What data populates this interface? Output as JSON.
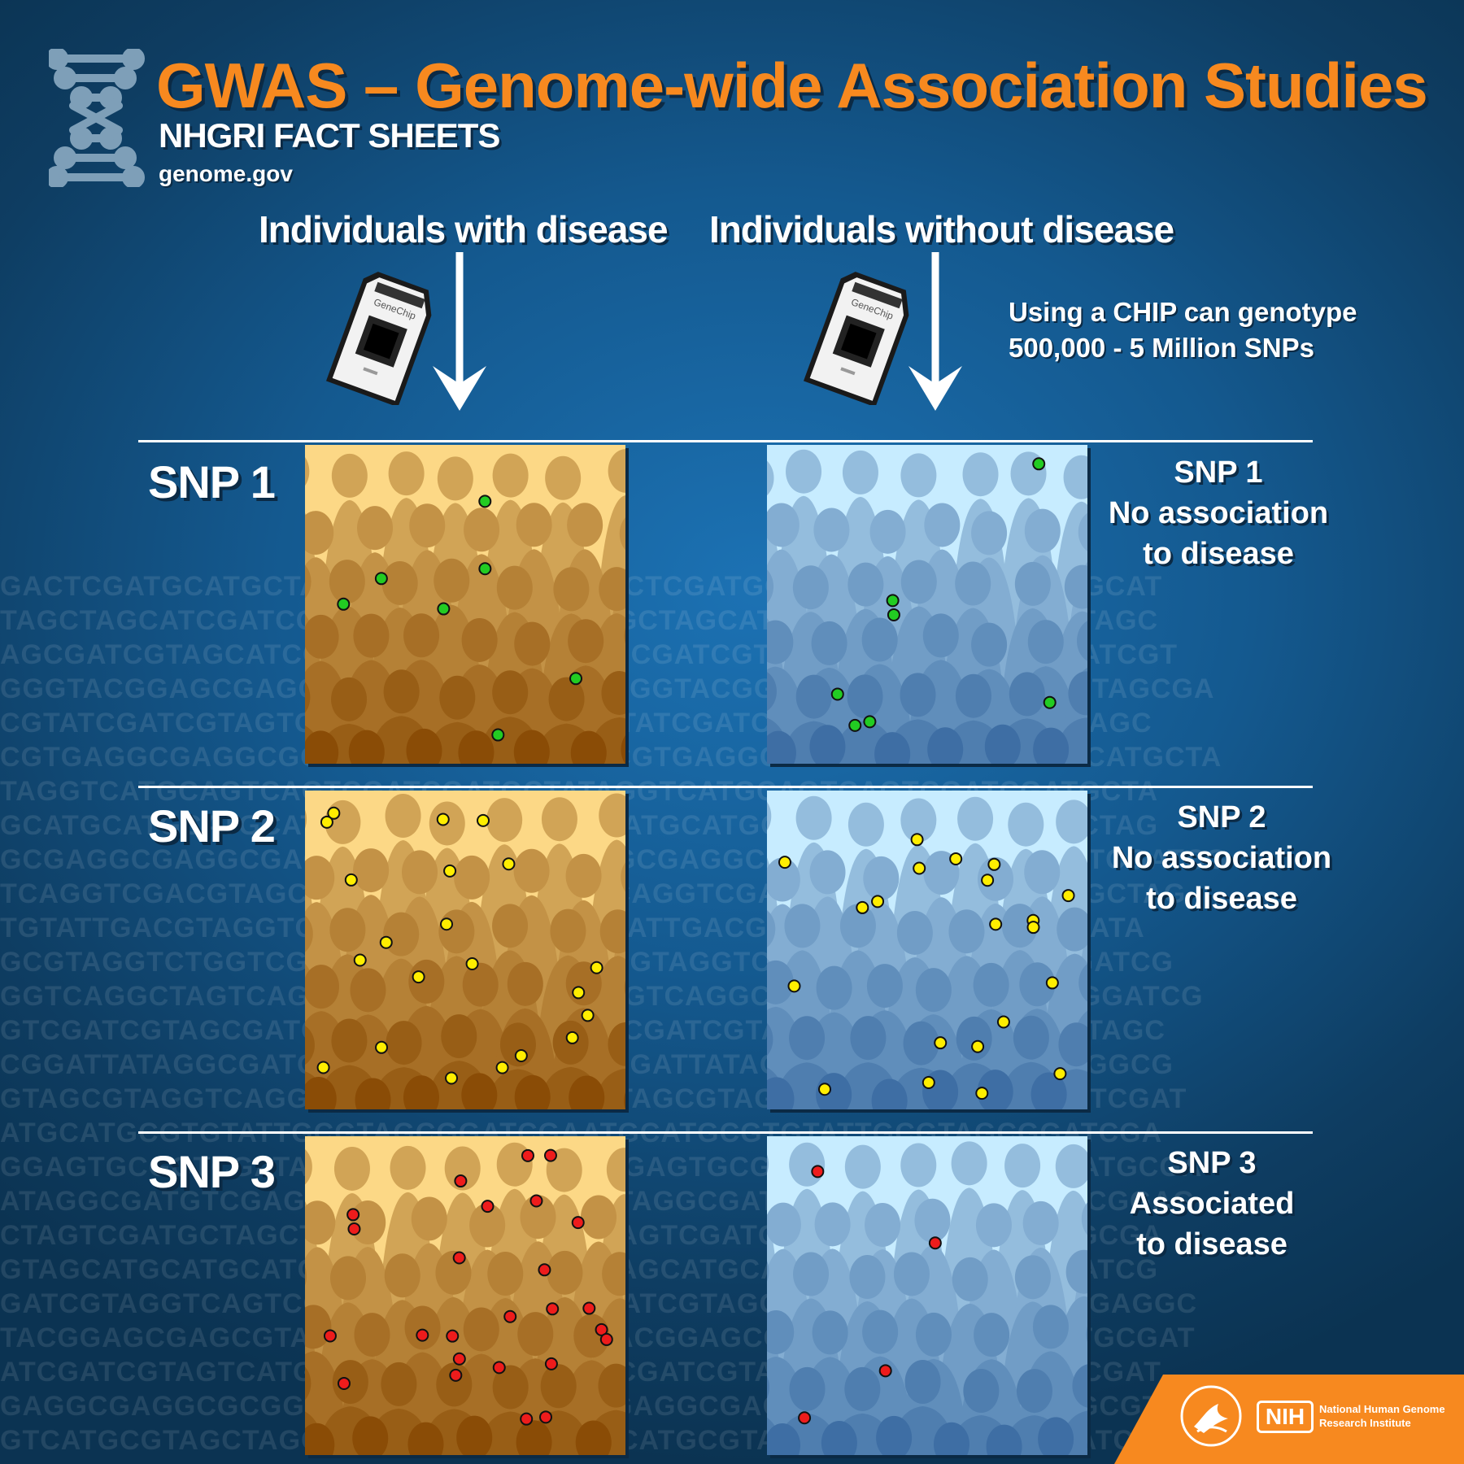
{
  "header": {
    "title": "GWAS – Genome-wide Association Studies",
    "subtitle": "NHGRI FACT SHEETS",
    "website": "genome.gov",
    "icon": "dna-icon"
  },
  "columns": {
    "with_disease": "Individuals with disease",
    "without_disease": "Individuals without disease"
  },
  "chip_note": {
    "line1": "Using a CHIP can genotype",
    "line2": "500,000 - 5 Million SNPs"
  },
  "chip": {
    "brand": "GeneChip"
  },
  "rows": [
    {
      "label": "SNP 1",
      "result_title": "SNP 1",
      "result_line1": "No association",
      "result_line2": "to disease",
      "dot_color": "#22cc22",
      "case_count": 7,
      "control_count": 7
    },
    {
      "label": "SNP 2",
      "result_title": "SNP 2",
      "result_line1": "No association",
      "result_line2": "to disease",
      "dot_color": "#ffee00",
      "case_count": 21,
      "control_count": 21
    },
    {
      "label": "SNP 3",
      "result_title": "SNP 3",
      "result_line1": "Associated",
      "result_line2": "to disease",
      "dot_color": "#ee1c1c",
      "case_count": 25,
      "control_count": 4
    }
  ],
  "colors": {
    "title": "#f7891f",
    "case_panel_top": "#fcd886",
    "case_panel_bottom": "#8a4c06",
    "control_panel_top": "#c7ecff",
    "control_panel_bottom": "#3e6ea4",
    "footer": "#f7891f"
  },
  "dna_background": [
    "GACTCGATGCATGCTAGCTAGGCTAGCAT",
    "TAGCTAGCATCGATCGTAGCTAGCGTAGC",
    "AGCGATCGTAGCATCGAGTCAGCGATCGT",
    "GGGTACGGAGCGAGCGATCGAGCTAGCGA",
    "CGTATCGATCGTAGTCGATCGATGCTAGC",
    "CGTGAGGCGAGGCGCGGAGCGGCATGCTA",
    "TAGGTCATGCAGTCAGTCGATCGATGCTA",
    "GCATGCATGCATGCATGCATGCTAGCTAG",
    "GCGAGGCGAGGCGAGCGAGCGATCGATCG",
    "TCAGGTCGACGTAGCGTAGCGGATGCTAG",
    "TGTATTGACGTAGGTCTGGTCGATCGATA",
    "GCGTAGGTCTGGTCGTAGCTAGTCGATCG",
    "GGTCAGGCTAGTCAGTCAGGAGCGGATCG",
    "GTCGATCGTAGCGATCGATCGATCGTAGC",
    "CGGATTATAGGCGATGCTAGCTAGCGGCG",
    "GTAGCGTAGGTCAGGTCAGGTCGGTCGAT",
    "ATGCATGCGTGTATTGCGTAGCGGATCGA",
    "GGAGTGCGGTCGATAGGCGAGTCATGCGA",
    "ATAGGCGATGTCGAGTCGATCGCGCGGAG",
    "CTAGTCGATGCTAGCTAGCTAGCTAGCGA",
    "GTAGCATGCATGCATGCATCGATGCATCG",
    "GATCGTAGGTCAGTCGTCGAGGTCGAGGC",
    "TACGGAGCGAGCGTAGCGTAGCGTGCGAT",
    "ATCGATCGTAGTCATGCAGGTCGGTCGAT",
    "GAGGCGAGGCGCGGACGTCGTAGCGTAGC",
    "GTCATGCGTAGCTAGCTCAGTATCGATCG"
  ],
  "footer": {
    "org_line1": "National Human Genome",
    "org_line2": "Research Institute",
    "nih_mark": "NIH"
  }
}
